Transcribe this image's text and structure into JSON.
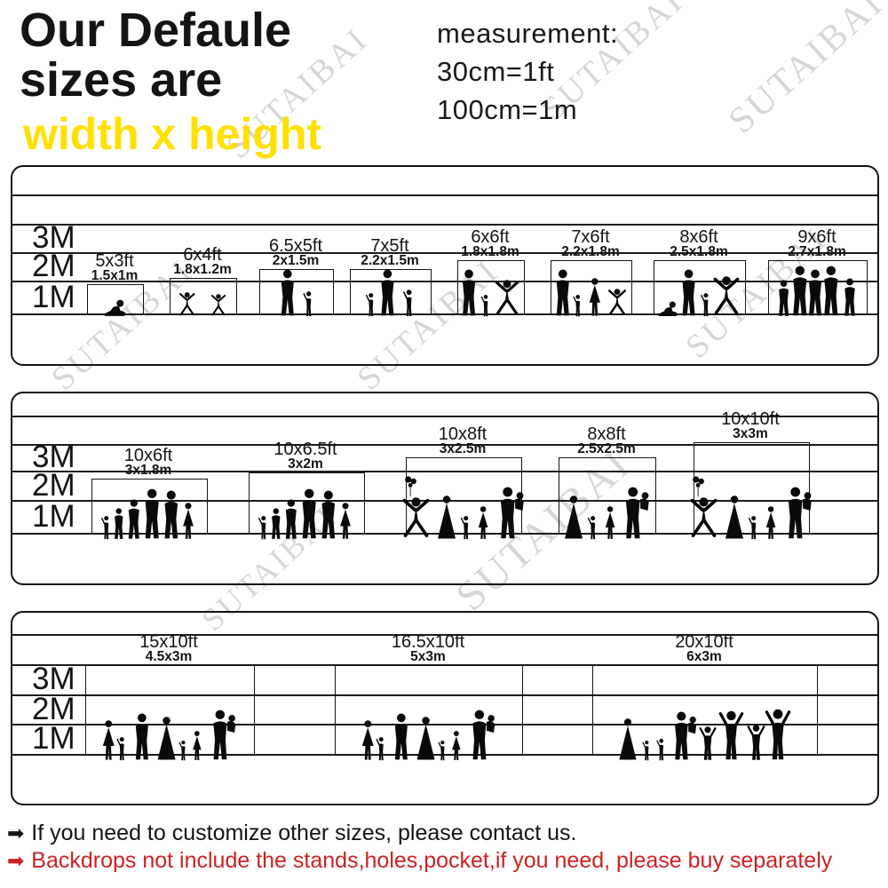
{
  "header": {
    "title_line1": "Our Defaule",
    "title_line2": "sizes are",
    "subtitle": "width x height",
    "measurement_title": "measurement:",
    "measurement_line1": "30cm=1ft",
    "measurement_line2": "100cm=1m"
  },
  "watermark": {
    "text": "SUTAIBAI"
  },
  "colors": {
    "accent_yellow": "#ffe000",
    "note_red": "#cc2222",
    "text_black": "#141414",
    "watermark_gray": "rgba(0,0,0,0.16)"
  },
  "panels": [
    {
      "name": "small-sizes",
      "row_labels": [
        "3M",
        "2M",
        "1M"
      ],
      "sizes": [
        {
          "ft": "5x3ft",
          "m": "1.5x1m",
          "width_m": 1.5,
          "height_m": 1.0,
          "figures": "sitting-child"
        },
        {
          "ft": "6x4ft",
          "m": "1.8x1.2m",
          "width_m": 1.8,
          "height_m": 1.2,
          "figures": "two-dancing-children"
        },
        {
          "ft": "6.5x5ft",
          "m": "2x1.5m",
          "width_m": 2.0,
          "height_m": 1.5,
          "figures": "adult-with-child"
        },
        {
          "ft": "7x5ft",
          "m": "2.2x1.5m",
          "width_m": 2.2,
          "height_m": 1.5,
          "figures": "adult-with-two-children"
        },
        {
          "ft": "6x6ft",
          "m": "1.8x1.8m",
          "width_m": 1.8,
          "height_m": 1.8,
          "figures": "family-of-three-dancing"
        },
        {
          "ft": "7x6ft",
          "m": "2.2x1.8m",
          "width_m": 2.2,
          "height_m": 1.8,
          "figures": "family-of-four-dancing"
        },
        {
          "ft": "8x6ft",
          "m": "2.5x1.8m",
          "width_m": 2.5,
          "height_m": 1.8,
          "figures": "family-of-four-playing"
        },
        {
          "ft": "9x6ft",
          "m": "2.7x1.8m",
          "width_m": 2.7,
          "height_m": 1.8,
          "figures": "group-of-five-adults"
        }
      ]
    },
    {
      "name": "medium-sizes",
      "row_labels": [
        "3M",
        "2M",
        "1M"
      ],
      "sizes": [
        {
          "ft": "10x6ft",
          "m": "3x1.8m",
          "width_m": 3.0,
          "height_m": 1.8,
          "figures": "family-of-six"
        },
        {
          "ft": "10x6.5ft",
          "m": "3x2m",
          "width_m": 3.0,
          "height_m": 2.0,
          "figures": "family-of-six"
        },
        {
          "ft": "10x8ft",
          "m": "3x2.5m",
          "width_m": 3.0,
          "height_m": 2.5,
          "figures": "jumping-child-balloons-family"
        },
        {
          "ft": "8x8ft",
          "m": "2.5x2.5m",
          "width_m": 2.5,
          "height_m": 2.5,
          "figures": "grandmother-children-couple"
        },
        {
          "ft": "10x10ft",
          "m": "3x3m",
          "width_m": 3.0,
          "height_m": 3.0,
          "figures": "jumping-child-balloons-family"
        }
      ]
    },
    {
      "name": "large-sizes",
      "row_labels": [
        "3M",
        "2M",
        "1M"
      ],
      "sizes": [
        {
          "ft": "15x10ft",
          "m": "4.5x3m",
          "width_m": 4.5,
          "height_m": 3.0,
          "figures": "large-family-of-seven"
        },
        {
          "ft": "16.5x10ft",
          "m": "5x3m",
          "width_m": 5.0,
          "height_m": 3.0,
          "figures": "large-family-of-seven"
        },
        {
          "ft": "20x10ft",
          "m": "6x3m",
          "width_m": 6.0,
          "height_m": 3.0,
          "figures": "cheering-family-of-eight"
        }
      ]
    }
  ],
  "notes": [
    {
      "icon": "arrow-right-icon",
      "color": "#141414",
      "text": "If you need to customize other sizes, please contact us."
    },
    {
      "icon": "arrow-right-icon",
      "color": "#cc2222",
      "text": "Backdrops not include the stands,holes,pocket,if you need, please buy separately"
    }
  ]
}
